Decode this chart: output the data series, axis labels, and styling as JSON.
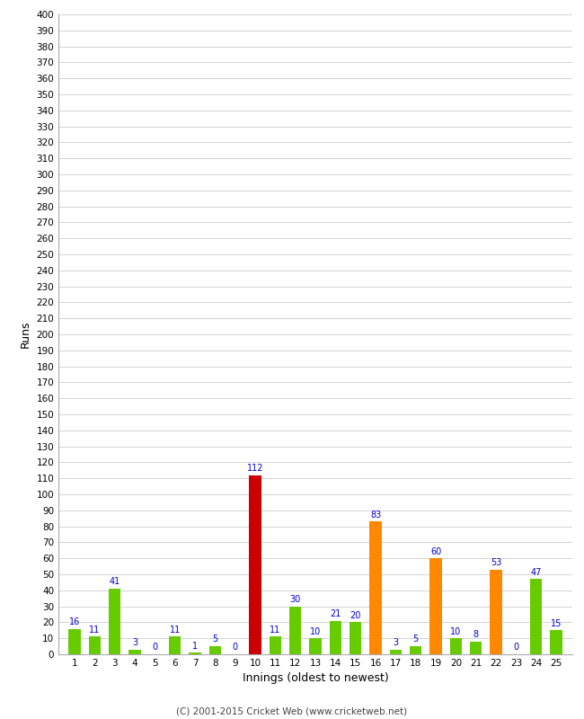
{
  "xlabel": "Innings (oldest to newest)",
  "ylabel": "Runs",
  "innings": [
    1,
    2,
    3,
    4,
    5,
    6,
    7,
    8,
    9,
    10,
    11,
    12,
    13,
    14,
    15,
    16,
    17,
    18,
    19,
    20,
    21,
    22,
    23,
    24,
    25
  ],
  "values": [
    16,
    11,
    41,
    3,
    0,
    11,
    1,
    5,
    0,
    112,
    11,
    30,
    10,
    21,
    20,
    83,
    3,
    5,
    60,
    10,
    8,
    53,
    0,
    47,
    15
  ],
  "colors": [
    "#66cc00",
    "#66cc00",
    "#66cc00",
    "#66cc00",
    "#66cc00",
    "#66cc00",
    "#66cc00",
    "#66cc00",
    "#66cc00",
    "#cc0000",
    "#66cc00",
    "#66cc00",
    "#66cc00",
    "#66cc00",
    "#66cc00",
    "#ff8800",
    "#66cc00",
    "#66cc00",
    "#ff8800",
    "#66cc00",
    "#66cc00",
    "#ff8800",
    "#66cc00",
    "#66cc00",
    "#66cc00"
  ],
  "ylim": [
    0,
    400
  ],
  "ytick_step": 10,
  "background_color": "#ffffff",
  "plot_bg_color": "#ffffff",
  "grid_color": "#cccccc",
  "label_color": "#0000cc",
  "footer": "(C) 2001-2015 Cricket Web (www.cricketweb.net)",
  "bar_width": 0.6,
  "figsize": [
    6.5,
    8.0
  ],
  "dpi": 100
}
